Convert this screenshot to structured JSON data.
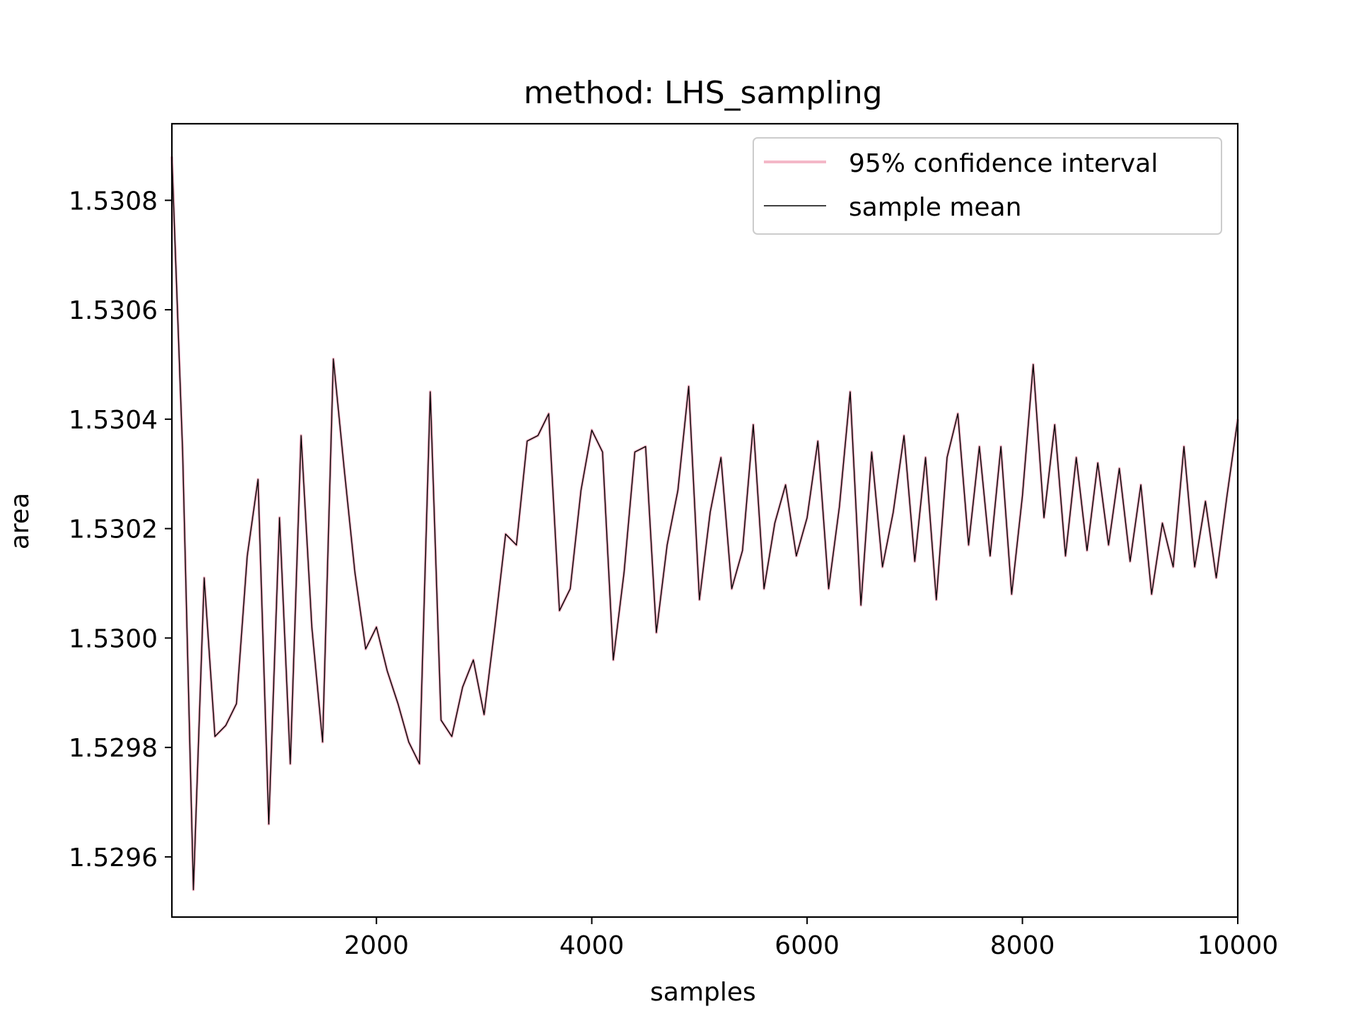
{
  "chart_data": {
    "type": "line",
    "title": "method: LHS_sampling",
    "xlabel": "samples",
    "ylabel": "area",
    "xlim": [
      100,
      10000
    ],
    "ylim": [
      1.52949,
      1.53094
    ],
    "x_ticks": [
      {
        "value": 2000,
        "label": "2000"
      },
      {
        "value": 4000,
        "label": "4000"
      },
      {
        "value": 6000,
        "label": "6000"
      },
      {
        "value": 8000,
        "label": "8000"
      },
      {
        "value": 10000,
        "label": "10000"
      }
    ],
    "y_ticks": [
      {
        "value": 1.5296,
        "label": "1.5296"
      },
      {
        "value": 1.5298,
        "label": "1.5298"
      },
      {
        "value": 1.53,
        "label": "1.5300"
      },
      {
        "value": 1.5302,
        "label": "1.5302"
      },
      {
        "value": 1.5304,
        "label": "1.5304"
      },
      {
        "value": 1.5306,
        "label": "1.5306"
      },
      {
        "value": 1.5308,
        "label": "1.5308"
      }
    ],
    "grid": false,
    "legend_position": "upper-right",
    "x": [
      100,
      200,
      300,
      400,
      500,
      600,
      700,
      800,
      900,
      1000,
      1100,
      1200,
      1300,
      1400,
      1500,
      1600,
      1700,
      1800,
      1900,
      2000,
      2100,
      2200,
      2300,
      2400,
      2500,
      2600,
      2700,
      2800,
      2900,
      3000,
      3100,
      3200,
      3300,
      3400,
      3500,
      3600,
      3700,
      3800,
      3900,
      4000,
      4100,
      4200,
      4300,
      4400,
      4500,
      4600,
      4700,
      4800,
      4900,
      5000,
      5100,
      5200,
      5300,
      5400,
      5500,
      5600,
      5700,
      5800,
      5900,
      6000,
      6100,
      6200,
      6300,
      6400,
      6500,
      6600,
      6700,
      6800,
      6900,
      7000,
      7100,
      7200,
      7300,
      7400,
      7500,
      7600,
      7700,
      7800,
      7900,
      8000,
      8100,
      8200,
      8300,
      8400,
      8500,
      8600,
      8700,
      8800,
      8900,
      9000,
      9100,
      9200,
      9300,
      9400,
      9500,
      9600,
      9700,
      9800,
      9900,
      10000
    ],
    "series": [
      {
        "name": "95% confidence interval",
        "color": "#f4b8c8",
        "values": [
          1.53088,
          1.53034,
          1.52954,
          1.53011,
          1.52982,
          1.52984,
          1.52988,
          1.53015,
          1.53029,
          1.52966,
          1.53022,
          1.52977,
          1.53037,
          1.53002,
          1.52981,
          1.53051,
          1.53031,
          1.53012,
          1.52998,
          1.53002,
          1.52994,
          1.52988,
          1.52981,
          1.52977,
          1.53045,
          1.52985,
          1.52982,
          1.52991,
          1.52996,
          1.52986,
          1.53002,
          1.53019,
          1.53017,
          1.53036,
          1.53037,
          1.53041,
          1.53005,
          1.53009,
          1.53027,
          1.53038,
          1.53034,
          1.52996,
          1.53012,
          1.53034,
          1.53035,
          1.53001,
          1.53017,
          1.53027,
          1.53046,
          1.53007,
          1.53023,
          1.53033,
          1.53009,
          1.53016,
          1.53039,
          1.53009,
          1.53021,
          1.53028,
          1.53015,
          1.53022,
          1.53036,
          1.53009,
          1.53024,
          1.53045,
          1.53006,
          1.53034,
          1.53013,
          1.53023,
          1.53037,
          1.53014,
          1.53033,
          1.53007,
          1.53033,
          1.53041,
          1.53017,
          1.53035,
          1.53015,
          1.53035,
          1.53008,
          1.53026,
          1.5305,
          1.53022,
          1.53039,
          1.53015,
          1.53033,
          1.53016,
          1.53032,
          1.53017,
          1.53031,
          1.53014,
          1.53028,
          1.53008,
          1.53021,
          1.53013,
          1.53035,
          1.53013,
          1.53025,
          1.53011,
          1.53026,
          1.5304
        ]
      },
      {
        "name": "sample mean",
        "color": "#000000",
        "values": [
          1.53088,
          1.53034,
          1.52954,
          1.53011,
          1.52982,
          1.52984,
          1.52988,
          1.53015,
          1.53029,
          1.52966,
          1.53022,
          1.52977,
          1.53037,
          1.53002,
          1.52981,
          1.53051,
          1.53031,
          1.53012,
          1.52998,
          1.53002,
          1.52994,
          1.52988,
          1.52981,
          1.52977,
          1.53045,
          1.52985,
          1.52982,
          1.52991,
          1.52996,
          1.52986,
          1.53002,
          1.53019,
          1.53017,
          1.53036,
          1.53037,
          1.53041,
          1.53005,
          1.53009,
          1.53027,
          1.53038,
          1.53034,
          1.52996,
          1.53012,
          1.53034,
          1.53035,
          1.53001,
          1.53017,
          1.53027,
          1.53046,
          1.53007,
          1.53023,
          1.53033,
          1.53009,
          1.53016,
          1.53039,
          1.53009,
          1.53021,
          1.53028,
          1.53015,
          1.53022,
          1.53036,
          1.53009,
          1.53024,
          1.53045,
          1.53006,
          1.53034,
          1.53013,
          1.53023,
          1.53037,
          1.53014,
          1.53033,
          1.53007,
          1.53033,
          1.53041,
          1.53017,
          1.53035,
          1.53015,
          1.53035,
          1.53008,
          1.53026,
          1.5305,
          1.53022,
          1.53039,
          1.53015,
          1.53033,
          1.53016,
          1.53032,
          1.53017,
          1.53031,
          1.53014,
          1.53028,
          1.53008,
          1.53021,
          1.53013,
          1.53035,
          1.53013,
          1.53025,
          1.53011,
          1.53026,
          1.5304
        ]
      }
    ]
  }
}
